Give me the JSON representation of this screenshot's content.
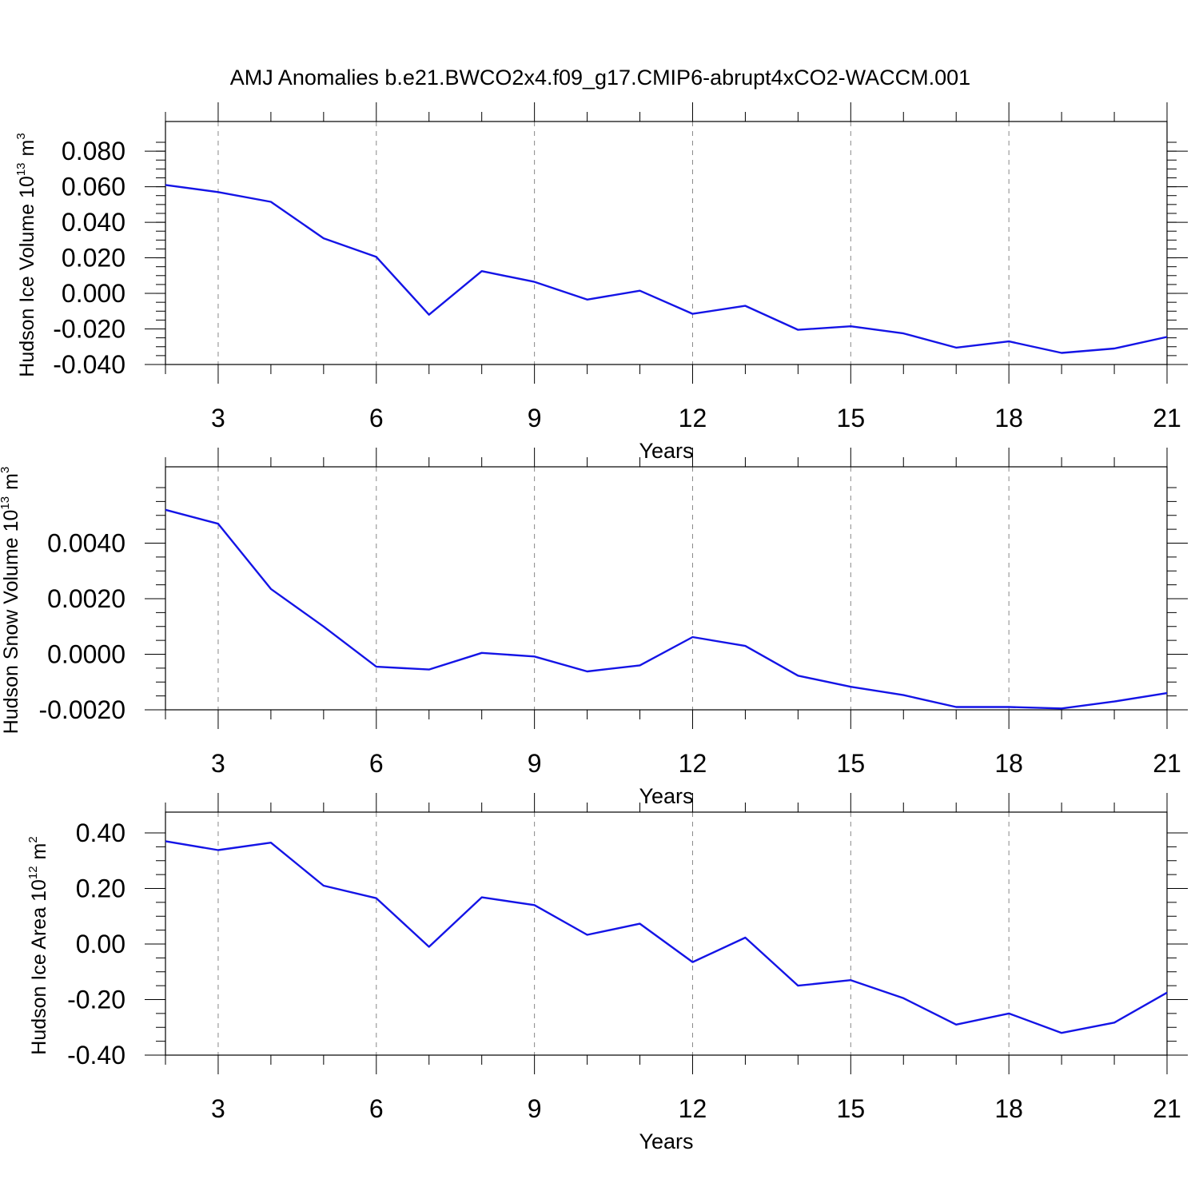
{
  "title": "AMJ Anomalies b.e21.BWCO2x4.f09_g17.CMIP6-abrupt4xCO2-WACCM.001",
  "colors": {
    "series": "#1414e6",
    "grid": "#888888",
    "axis": "#000000"
  },
  "chart_data": [
    {
      "type": "line",
      "xlabel": "Years",
      "ylabel": {
        "text": "Hudson Ice Volume 10",
        "exp": "13",
        "unit": "m",
        "unit_exp": "3"
      },
      "xlim": [
        2,
        21
      ],
      "ylim": [
        -0.04,
        0.085
      ],
      "xticks": [
        3,
        6,
        9,
        12,
        15,
        18,
        21
      ],
      "xtick_labels": [
        "3",
        "6",
        "9",
        "12",
        "15",
        "18",
        "21"
      ],
      "yticks": [
        -0.04,
        -0.02,
        0.0,
        0.02,
        0.04,
        0.06,
        0.08
      ],
      "ytick_labels": [
        "-0.040",
        "-0.020",
        "0.000",
        "0.020",
        "0.040",
        "0.060",
        "0.080"
      ],
      "grid": "x-dashed",
      "x": [
        2,
        3,
        4,
        5,
        6,
        7,
        8,
        9,
        10,
        11,
        12,
        13,
        14,
        15,
        16,
        17,
        18,
        19,
        20,
        21
      ],
      "values": [
        0.061,
        0.057,
        0.0515,
        0.031,
        0.0205,
        -0.012,
        0.0125,
        0.0065,
        -0.0035,
        0.0015,
        -0.0115,
        -0.007,
        -0.0205,
        -0.0185,
        -0.0225,
        -0.0305,
        -0.027,
        -0.0335,
        -0.031,
        -0.0245
      ]
    },
    {
      "type": "line",
      "xlabel": "Years",
      "ylabel": {
        "text": "Hudson Snow Volume 10",
        "exp": "13",
        "unit": "m",
        "unit_exp": "3"
      },
      "xlim": [
        2,
        21
      ],
      "ylim": [
        -0.002,
        0.006
      ],
      "xticks": [
        3,
        6,
        9,
        12,
        15,
        18,
        21
      ],
      "xtick_labels": [
        "3",
        "6",
        "9",
        "12",
        "15",
        "18",
        "21"
      ],
      "yticks": [
        -0.002,
        0.0,
        0.002,
        0.004
      ],
      "ytick_labels": [
        "-0.0020",
        "0.0000",
        "0.0020",
        "0.0040"
      ],
      "grid": "x-dashed",
      "x": [
        2,
        3,
        4,
        5,
        6,
        7,
        8,
        9,
        10,
        11,
        12,
        13,
        14,
        15,
        16,
        17,
        18,
        19,
        20,
        21
      ],
      "values": [
        0.0052,
        0.0047,
        0.00235,
        0.001,
        -0.00045,
        -0.00055,
        5e-05,
        -8e-05,
        -0.00062,
        -0.0004,
        0.00062,
        0.0003,
        -0.00077,
        -0.00117,
        -0.00147,
        -0.0019,
        -0.0019,
        -0.00195,
        -0.0017,
        -0.0014
      ]
    },
    {
      "type": "line",
      "xlabel": "Years",
      "ylabel": {
        "text": "Hudson Ice Area 10",
        "exp": "12",
        "unit": "m",
        "unit_exp": "2"
      },
      "xlim": [
        2,
        21
      ],
      "ylim": [
        -0.4,
        0.4
      ],
      "xticks": [
        3,
        6,
        9,
        12,
        15,
        18,
        21
      ],
      "xtick_labels": [
        "3",
        "6",
        "9",
        "12",
        "15",
        "18",
        "21"
      ],
      "yticks": [
        -0.4,
        -0.2,
        0.0,
        0.2,
        0.4
      ],
      "ytick_labels": [
        "-0.40",
        "-0.20",
        "0.00",
        "0.20",
        "0.40"
      ],
      "grid": "x-dashed",
      "x": [
        2,
        3,
        4,
        5,
        6,
        7,
        8,
        9,
        10,
        11,
        12,
        13,
        14,
        15,
        16,
        17,
        18,
        19,
        20,
        21
      ],
      "values": [
        0.37,
        0.338,
        0.365,
        0.21,
        0.165,
        -0.01,
        0.168,
        0.14,
        0.033,
        0.073,
        -0.065,
        0.023,
        -0.15,
        -0.13,
        -0.195,
        -0.29,
        -0.25,
        -0.32,
        -0.283,
        -0.175
      ]
    }
  ]
}
